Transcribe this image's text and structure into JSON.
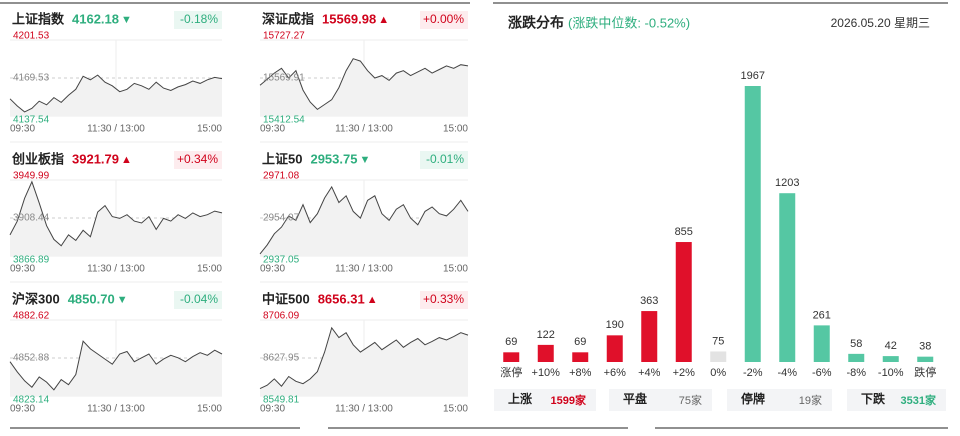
{
  "cards": [
    {
      "name": "上证指数",
      "price": "4162.18",
      "arrow": "▼",
      "change": "-0.18%",
      "color": "#2eae7e",
      "high": 4201.53,
      "mid": 4169.53,
      "low": 4137.54,
      "time_labels": [
        "09:30",
        "11:30 / 13:00",
        "15:00"
      ],
      "values": [
        4152,
        4146,
        4141,
        4144,
        4150,
        4147,
        4153,
        4149,
        4155,
        4160,
        4171,
        4168,
        4172,
        4166,
        4163,
        4158,
        4160,
        4165,
        4163,
        4160,
        4166,
        4161,
        4159,
        4162,
        4164,
        4167,
        4165,
        4168,
        4170,
        4169
      ]
    },
    {
      "name": "深证成指",
      "price": "15569.98",
      "arrow": "▲",
      "change": "+0.00%",
      "color": "#d0021b",
      "high": 15727.27,
      "mid": 15569.91,
      "low": 15412.54,
      "time_labels": [
        "09:30",
        "11:30 / 13:00",
        "15:00"
      ],
      "values": [
        15540,
        15565,
        15590,
        15610,
        15570,
        15600,
        15520,
        15470,
        15440,
        15460,
        15480,
        15530,
        15600,
        15650,
        15640,
        15600,
        15570,
        15580,
        15560,
        15590,
        15600,
        15580,
        15595,
        15610,
        15590,
        15605,
        15620,
        15610,
        15625,
        15620
      ]
    },
    {
      "name": "创业板指",
      "price": "3921.79",
      "arrow": "▲",
      "change": "+0.34%",
      "color": "#d0021b",
      "high": 3949.99,
      "mid": 3908.44,
      "low": 3866.89,
      "time_labels": [
        "09:30",
        "11:30 / 13:00",
        "15:00"
      ],
      "values": [
        3890,
        3905,
        3930,
        3948,
        3925,
        3900,
        3885,
        3878,
        3890,
        3884,
        3895,
        3888,
        3915,
        3922,
        3910,
        3908,
        3912,
        3905,
        3903,
        3910,
        3896,
        3908,
        3905,
        3912,
        3908,
        3914,
        3910,
        3912,
        3916,
        3914
      ]
    },
    {
      "name": "上证50",
      "price": "2953.75",
      "arrow": "▼",
      "change": "-0.01%",
      "color": "#2eae7e",
      "high": 2971.08,
      "mid": 2954.07,
      "low": 2937.05,
      "time_labels": [
        "09:30",
        "11:30 / 13:00",
        "15:00"
      ],
      "values": [
        2938,
        2942,
        2947,
        2950,
        2955,
        2953,
        2960,
        2952,
        2956,
        2963,
        2968,
        2961,
        2964,
        2957,
        2954,
        2962,
        2964,
        2956,
        2953,
        2958,
        2960,
        2954,
        2951,
        2957,
        2959,
        2956,
        2955,
        2958,
        2962,
        2957
      ]
    },
    {
      "name": "沪深300",
      "price": "4850.70",
      "arrow": "▼",
      "change": "-0.04%",
      "color": "#2eae7e",
      "high": 4882.62,
      "mid": 4852.88,
      "low": 4823.14,
      "time_labels": [
        "09:30",
        "11:30 / 13:00",
        "15:00"
      ],
      "values": [
        4850,
        4842,
        4835,
        4830,
        4838,
        4834,
        4828,
        4836,
        4832,
        4840,
        4866,
        4860,
        4856,
        4852,
        4848,
        4856,
        4858,
        4850,
        4853,
        4856,
        4848,
        4852,
        4855,
        4853,
        4850,
        4854,
        4857,
        4855,
        4859,
        4856
      ]
    },
    {
      "name": "中证500",
      "price": "8656.31",
      "arrow": "▲",
      "change": "+0.33%",
      "color": "#d0021b",
      "high": 8706.09,
      "mid": 8627.95,
      "low": 8549.81,
      "time_labels": [
        "09:30",
        "11:30 / 13:00",
        "15:00"
      ],
      "values": [
        8565,
        8572,
        8585,
        8570,
        8590,
        8580,
        8575,
        8585,
        8600,
        8640,
        8690,
        8670,
        8680,
        8655,
        8640,
        8650,
        8660,
        8645,
        8655,
        8665,
        8650,
        8660,
        8668,
        8655,
        8662,
        8670,
        8665,
        8672,
        8680,
        8675
      ]
    }
  ],
  "distribution": {
    "title": "涨跌分布",
    "subtitle": "(涨跌中位数: -0.52%)",
    "date": "2026.05.20 星期三",
    "categories": [
      "涨停",
      "+10%",
      "+8%",
      "+6%",
      "+4%",
      "+2%",
      "0%",
      "-2%",
      "-4%",
      "-6%",
      "-8%",
      "-10%",
      "跌停"
    ],
    "values": [
      69,
      122,
      69,
      190,
      363,
      855,
      75,
      1967,
      1203,
      261,
      58,
      42,
      38
    ],
    "colors": [
      "#e0102a",
      "#e0102a",
      "#e0102a",
      "#e0102a",
      "#e0102a",
      "#e0102a",
      "#e3e3e3",
      "#55c7a3",
      "#55c7a3",
      "#55c7a3",
      "#55c7a3",
      "#55c7a3",
      "#55c7a3"
    ],
    "summary": [
      {
        "label": "上涨",
        "count": "1599家",
        "color": "#d0021b"
      },
      {
        "label": "平盘",
        "count": "75家",
        "color": "#666666"
      },
      {
        "label": "停牌",
        "count": "19家",
        "color": "#666666"
      },
      {
        "label": "下跌",
        "count": "3531家",
        "color": "#2eae7e"
      }
    ]
  }
}
